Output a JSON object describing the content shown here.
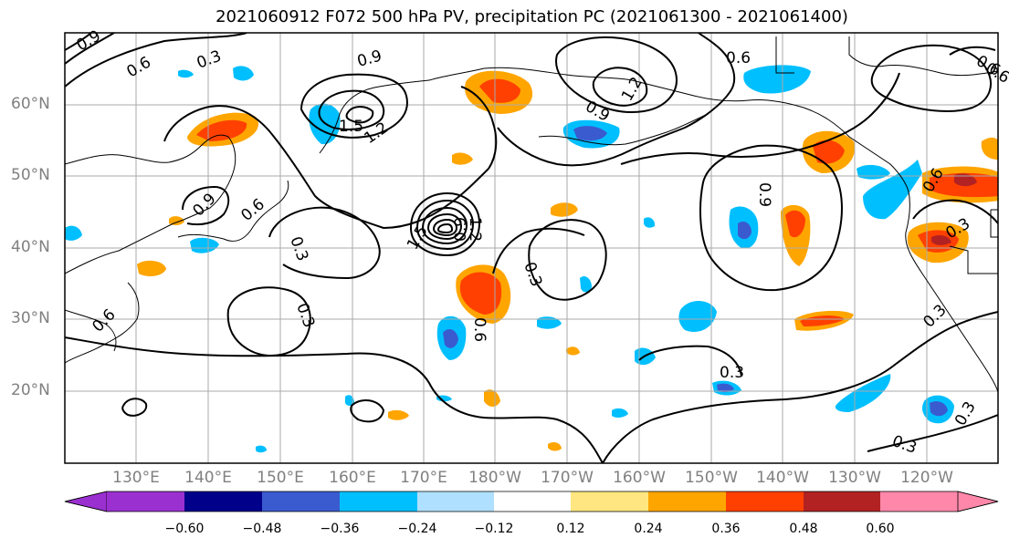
{
  "title": "2021060912 F072 500 hPa PV, precipitation PC (2021061300 - 2021061400)",
  "lat_labels": [
    "60°N",
    "50°N",
    "40°N",
    "30°N",
    "20°N"
  ],
  "lon_labels": [
    "130°E",
    "140°E",
    "150°E",
    "160°E",
    "170°E",
    "180°W",
    "170°W",
    "160°W",
    "150°W",
    "140°W",
    "130°W",
    "120°W"
  ],
  "colorbar": {
    "ticks": [
      "−0.60",
      "−0.48",
      "−0.36",
      "−0.24",
      "−0.12",
      "0.12",
      "0.24",
      "0.36",
      "0.48",
      "0.60"
    ],
    "colors": [
      "#9b30d0",
      "#00008b",
      "#3a5bd0",
      "#00bfff",
      "#b0e0ff",
      "#ffffff",
      "#ffe680",
      "#ffa500",
      "#ff4000",
      "#b22222",
      "#ff88aa"
    ]
  },
  "contour_labels": [
    "0.9",
    "0.6",
    "0.3",
    "0.9",
    "0.6",
    "0.3",
    "0.6",
    "0.9",
    "1.5",
    "1.2",
    "1.2",
    "0.9",
    "0.6",
    "0.3",
    "1.5",
    "1.2",
    "0.9",
    "0.6",
    "0.3",
    "0.6",
    "0.3",
    "0.6",
    "0.9",
    "0.3",
    "0.3",
    "0.3",
    "0.3",
    "0.6"
  ]
}
